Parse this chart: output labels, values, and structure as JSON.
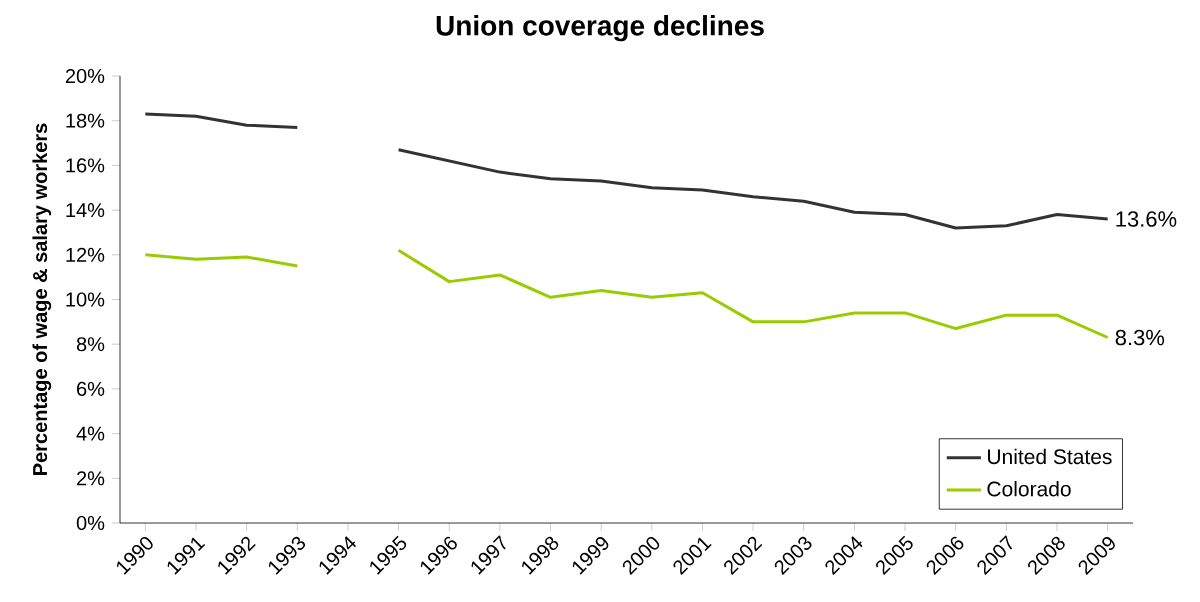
{
  "chart_data": {
    "type": "line",
    "title": "Union coverage declines",
    "ylabel": "Percentage of wage & salary workers",
    "categories": [
      "1990",
      "1991",
      "1992",
      "1993",
      "1994",
      "1995",
      "1996",
      "1997",
      "1998",
      "1999",
      "2000",
      "2001",
      "2002",
      "2003",
      "2004",
      "2005",
      "2006",
      "2007",
      "2008",
      "2009"
    ],
    "series": [
      {
        "name": "United States",
        "color": "#333333",
        "values": [
          18.3,
          18.2,
          17.8,
          17.7,
          null,
          16.7,
          16.2,
          15.7,
          15.4,
          15.3,
          15.0,
          14.9,
          14.6,
          14.4,
          13.9,
          13.8,
          13.2,
          13.3,
          13.8,
          13.6
        ]
      },
      {
        "name": "Colorado",
        "color": "#99cc00",
        "values": [
          12.0,
          11.8,
          11.9,
          11.5,
          null,
          12.2,
          10.8,
          11.1,
          10.1,
          10.4,
          10.1,
          10.3,
          9.0,
          9.0,
          9.4,
          9.4,
          8.7,
          9.3,
          9.3,
          8.3
        ]
      }
    ],
    "ylim": [
      0,
      20
    ],
    "yticks": [
      {
        "value": 0,
        "label": "0%"
      },
      {
        "value": 2,
        "label": "2%"
      },
      {
        "value": 4,
        "label": "4%"
      },
      {
        "value": 6,
        "label": "6%"
      },
      {
        "value": 8,
        "label": "8%"
      },
      {
        "value": 10,
        "label": "10%"
      },
      {
        "value": 12,
        "label": "12%"
      },
      {
        "value": 14,
        "label": "14%"
      },
      {
        "value": 16,
        "label": "16%"
      },
      {
        "value": 18,
        "label": "18%"
      },
      {
        "value": 20,
        "label": "20%"
      }
    ],
    "annotations": [
      {
        "text": "13.6%",
        "x": "2009",
        "y": 13.6
      },
      {
        "text": "8.3%",
        "x": "2009",
        "y": 8.3
      }
    ],
    "legend": "bottom right",
    "grid": false,
    "marker": "none",
    "line_style": "solid"
  }
}
